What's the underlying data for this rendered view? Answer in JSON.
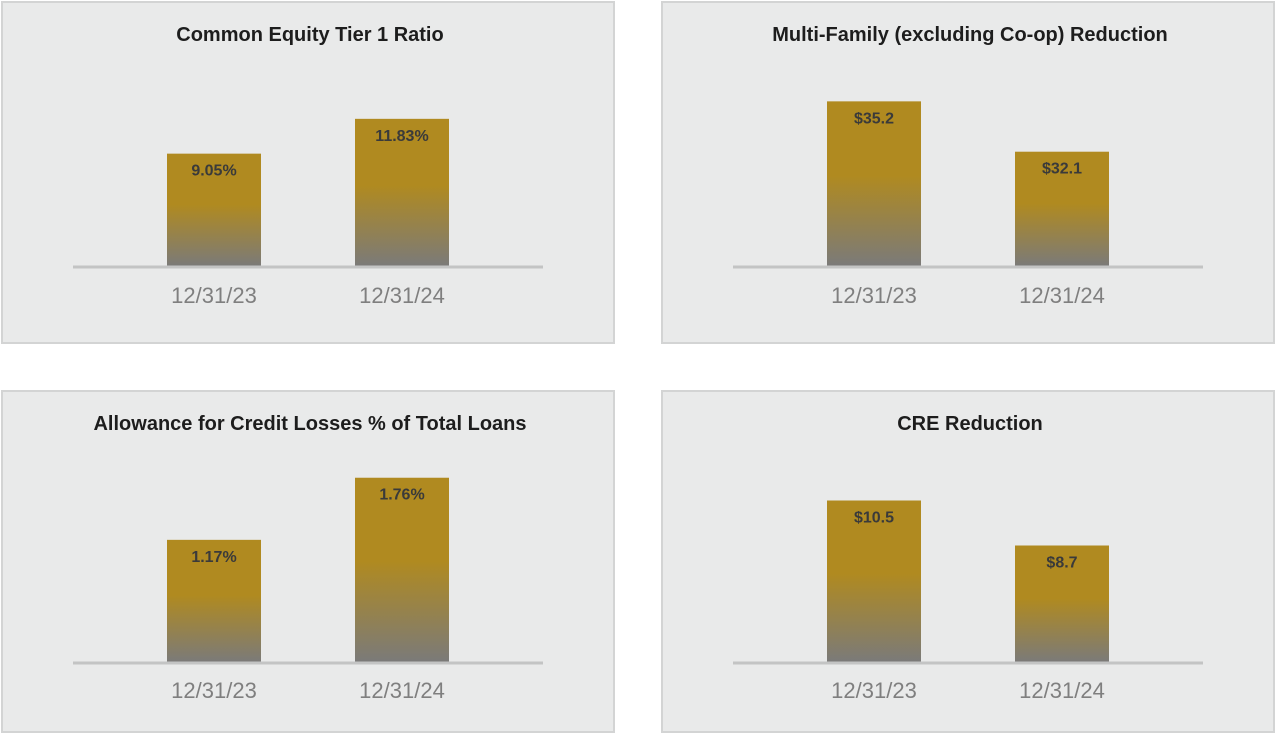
{
  "colors": {
    "bar_top": "#b08a20",
    "bar_bottom": "#7a7a7a",
    "axis": "#c3c4c4",
    "panel_bg": "#e9eaea"
  },
  "chart_data": [
    {
      "type": "bar",
      "title": "Common Equity Tier 1 Ratio",
      "categories": [
        "12/31/23",
        "12/31/24"
      ],
      "values": [
        9.05,
        11.83
      ],
      "value_labels": [
        "9.05%",
        "11.83%"
      ],
      "ylim": [
        0,
        15.17
      ],
      "xlabel": "",
      "ylabel": "",
      "grid": false,
      "legend": "none"
    },
    {
      "type": "bar",
      "title": "Multi-Family (excluding Co-op) Reduction",
      "categories": [
        "12/31/23",
        "12/31/24"
      ],
      "values": [
        35.2,
        32.1
      ],
      "value_labels": [
        "$35.2",
        "$32.1"
      ],
      "ylim": [
        25.0,
        36.7
      ],
      "xlabel": "",
      "ylabel": "",
      "grid": false,
      "legend": "none"
    },
    {
      "type": "bar",
      "title": "Allowance for Credit Losses % of Total Loans",
      "categories": [
        "12/31/23",
        "12/31/24"
      ],
      "values": [
        1.17,
        1.76
      ],
      "value_labels": [
        "1.17%",
        "1.76%"
      ],
      "ylim": [
        0,
        1.9
      ],
      "xlabel": "",
      "ylabel": "",
      "grid": false,
      "legend": "none"
    },
    {
      "type": "bar",
      "title": "CRE Reduction",
      "categories": [
        "12/31/23",
        "12/31/24"
      ],
      "values": [
        10.5,
        8.7
      ],
      "value_labels": [
        "$10.5",
        "$8.7"
      ],
      "ylim": [
        4.0,
        12.0
      ],
      "xlabel": "",
      "ylabel": "",
      "grid": false,
      "legend": "none"
    }
  ]
}
